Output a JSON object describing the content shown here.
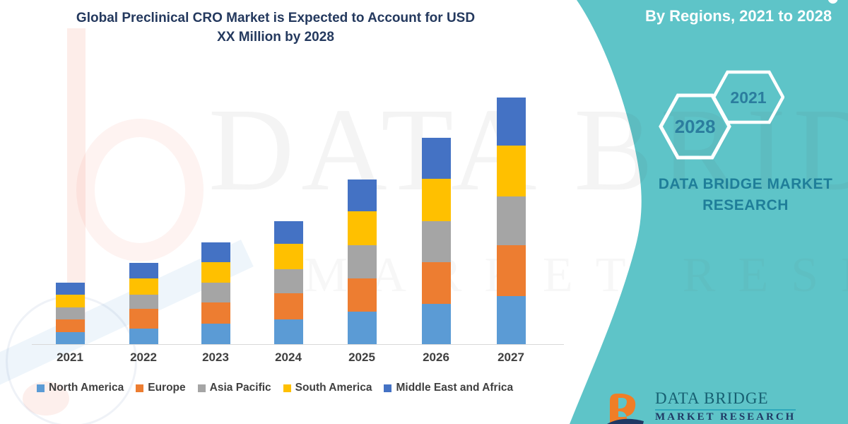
{
  "header": {
    "title_line1": "Global Preclinical CRO Market is Expected to Account for USD",
    "title_line2": "XX Million by 2028",
    "title_color": "#24395E",
    "banner_label": "By Regions, 2021 to 2028"
  },
  "side_panel": {
    "panel_color": "#5EC4C8",
    "hexagon_back_year": "2028",
    "hexagon_front_year": "2021",
    "hexagon_text_color": "#2B7D9E",
    "brand_line1": "DATA BRIDGE MARKET",
    "brand_line2": "RESEARCH",
    "brand_text_color": "#1F7E99"
  },
  "watermark": {
    "line1": "DATA BRIDGE",
    "line2": "MARKET RESEARCH"
  },
  "footer_logo": {
    "name": "DATA BRIDGE",
    "sub_cutoff": "MARKET RESEARCH",
    "b_icon_color": "#F07E26",
    "swoosh_color": "#1F3864"
  },
  "chart_data": {
    "type": "bar",
    "stacked": true,
    "title": "Global Preclinical CRO Market is Expected to Account for USD XX Million by 2028",
    "categories": [
      "2021",
      "2022",
      "2023",
      "2024",
      "2025",
      "2026",
      "2027"
    ],
    "series": [
      {
        "name": "North America",
        "color": "#5B9BD5",
        "values": [
          17,
          22,
          29,
          35,
          46,
          57,
          68
        ]
      },
      {
        "name": "Europe",
        "color": "#ED7D31",
        "values": [
          18,
          28,
          30,
          37,
          47,
          59,
          72
        ]
      },
      {
        "name": "Asia Pacific",
        "color": "#A5A5A5",
        "values": [
          17,
          20,
          28,
          34,
          47,
          58,
          69
        ]
      },
      {
        "name": "South America",
        "color": "#FFC000",
        "values": [
          18,
          23,
          29,
          36,
          48,
          60,
          72
        ]
      },
      {
        "name": "Middle East and Africa",
        "color": "#4472C4",
        "values": [
          17,
          22,
          28,
          32,
          45,
          58,
          68
        ]
      }
    ],
    "value_labels": "masked as XX on source (values above are relative estimates from bar pixel heights)",
    "xlabel": "",
    "ylabel": "",
    "value_axis_visible": false,
    "grid": false,
    "legend_position": "bottom"
  }
}
